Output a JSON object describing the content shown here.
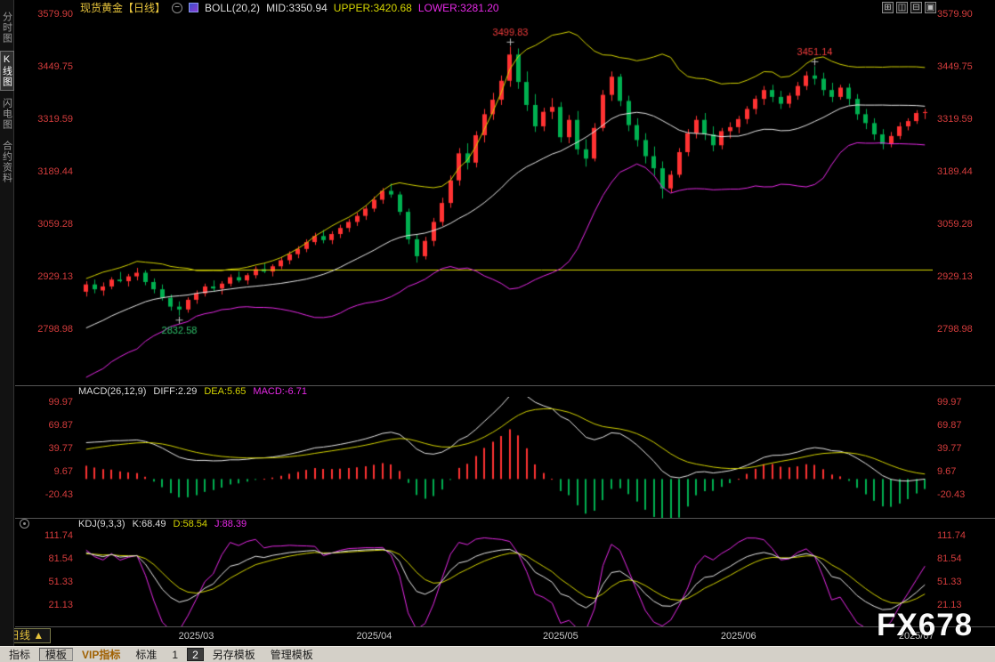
{
  "window": {
    "watermark": "FX678"
  },
  "colors": {
    "background": "#000000",
    "axis_text": "#d43c3c",
    "xaxis_text": "#c8c8c8",
    "title_yellow": "#e6c33c",
    "candle_up": "#ff3232",
    "candle_down": "#00b050",
    "boll_upper": "#d4d400",
    "boll_mid": "#e8e8e8",
    "boll_lower": "#e629e6",
    "alert_line": "#d8d800",
    "macd_diff": "#e8e8e8",
    "macd_dea": "#d4d400",
    "kdj_k": "#e8e8e8",
    "kdj_d": "#d4d400",
    "kdj_j": "#e629e6",
    "annotation_high": "#f03c3c",
    "annotation_low": "#2fc06a"
  },
  "sidebar": {
    "items": [
      {
        "label": "分时图",
        "selected": false
      },
      {
        "label": "K线图",
        "selected": true
      },
      {
        "label": "闪电图",
        "selected": false
      },
      {
        "label": "合约资料",
        "selected": false
      }
    ]
  },
  "header": {
    "title": "现货黄金【日线】",
    "boll_label": "BOLL(20,2)",
    "boll_mid": "MID:3350.94",
    "boll_upper": "UPPER:3420.68",
    "boll_lower": "LOWER:3281.20"
  },
  "macd_header": {
    "label": "MACD(26,12,9)",
    "diff": "DIFF:2.29",
    "dea": "DEA:5.65",
    "macd": "MACD:-6.71"
  },
  "kdj_header": {
    "label": "KDJ(9,3,3)",
    "k": "K:68.49",
    "d": "D:58.54",
    "j": "J:88.39"
  },
  "axes": {
    "main": [
      "3579.90",
      "3449.75",
      "3319.59",
      "3189.44",
      "3059.28",
      "2929.13",
      "2798.98"
    ],
    "macd": [
      "99.97",
      "69.87",
      "39.77",
      "9.67",
      "-20.43"
    ],
    "kdj": [
      "111.74",
      "81.54",
      "51.33",
      "21.13"
    ]
  },
  "timeframe_tab": {
    "label": "日线 ▲"
  },
  "toolbar": {
    "buttons": [
      {
        "label": "指标",
        "name": "indicators-button",
        "state": "normal"
      },
      {
        "label": "模板",
        "name": "templates-button",
        "state": "selected"
      },
      {
        "label": "VIP指标",
        "name": "vip-indicators-button",
        "state": "vip"
      },
      {
        "label": "标准",
        "name": "standard-button",
        "state": "normal"
      },
      {
        "label": "1",
        "name": "layout-1-button",
        "state": "normal"
      },
      {
        "label": "2",
        "name": "layout-2-button",
        "state": "dark"
      },
      {
        "label": "另存模板",
        "name": "save-template-as-button",
        "state": "normal"
      },
      {
        "label": "管理模板",
        "name": "manage-template-button",
        "state": "normal"
      }
    ]
  },
  "chart_data": {
    "type": "candlestick",
    "title": "现货黄金 日线",
    "y_ticks": [
      3579.9,
      3449.75,
      3319.59,
      3189.44,
      3059.28,
      2929.13,
      2798.98
    ],
    "indicators": {
      "boll": {
        "period": 20,
        "mult": 2,
        "mid": 3350.94,
        "upper": 3420.68,
        "lower": 3281.2
      },
      "macd": {
        "params": [
          26,
          12,
          9
        ],
        "diff": 2.29,
        "dea": 5.65,
        "macd": -6.71,
        "y_ticks": [
          99.97,
          69.87,
          39.77,
          9.67,
          -20.43
        ]
      },
      "kdj": {
        "params": [
          9,
          3,
          3
        ],
        "k": 68.49,
        "d": 58.54,
        "j": 88.39,
        "y_ticks": [
          111.74,
          81.54,
          51.33,
          21.13
        ]
      }
    },
    "x_labels": [
      {
        "index": 13,
        "label": "2025/03"
      },
      {
        "index": 34,
        "label": "2025/04"
      },
      {
        "index": 56,
        "label": "2025/05"
      },
      {
        "index": 77,
        "label": "2025/06"
      },
      {
        "index": 98,
        "label": "2025/07"
      }
    ],
    "annotations": [
      {
        "index": 50,
        "text": "3499.83",
        "type": "high"
      },
      {
        "index": 86,
        "text": "3451.14",
        "type": "high"
      },
      {
        "index": 11,
        "text": "2832.58",
        "type": "low"
      }
    ],
    "horizontal_line": {
      "price": 2947.0,
      "start_index": 8
    },
    "lead_in_closes": [
      2690,
      2705,
      2720,
      2700,
      2735,
      2750,
      2770,
      2745,
      2780,
      2800,
      2790,
      2815,
      2830,
      2810,
      2845,
      2860,
      2850,
      2875,
      2865,
      2885
    ],
    "candles": [
      [
        2892,
        2918,
        2880,
        2910
      ],
      [
        2910,
        2922,
        2888,
        2898
      ],
      [
        2895,
        2915,
        2882,
        2905
      ],
      [
        2905,
        2928,
        2898,
        2922
      ],
      [
        2922,
        2941,
        2915,
        2918
      ],
      [
        2918,
        2936,
        2905,
        2930
      ],
      [
        2930,
        2951,
        2920,
        2939
      ],
      [
        2939,
        2945,
        2908,
        2916
      ],
      [
        2916,
        2925,
        2888,
        2898
      ],
      [
        2898,
        2910,
        2870,
        2877
      ],
      [
        2877,
        2885,
        2845,
        2855
      ],
      [
        2855,
        2868,
        2832.6,
        2848
      ],
      [
        2848,
        2878,
        2840,
        2872
      ],
      [
        2872,
        2895,
        2862,
        2888
      ],
      [
        2888,
        2912,
        2880,
        2905
      ],
      [
        2905,
        2920,
        2892,
        2900
      ],
      [
        2900,
        2918,
        2885,
        2912
      ],
      [
        2912,
        2935,
        2905,
        2928
      ],
      [
        2928,
        2942,
        2915,
        2920
      ],
      [
        2920,
        2938,
        2910,
        2933
      ],
      [
        2933,
        2955,
        2925,
        2948
      ],
      [
        2948,
        2962,
        2938,
        2942
      ],
      [
        2942,
        2960,
        2930,
        2955
      ],
      [
        2955,
        2978,
        2948,
        2970
      ],
      [
        2970,
        2992,
        2960,
        2985
      ],
      [
        2985,
        3005,
        2975,
        2998
      ],
      [
        2998,
        3022,
        2990,
        3015
      ],
      [
        3015,
        3038,
        3008,
        3030
      ],
      [
        3030,
        3045,
        3012,
        3020
      ],
      [
        3020,
        3042,
        3010,
        3035
      ],
      [
        3035,
        3058,
        3025,
        3050
      ],
      [
        3050,
        3072,
        3040,
        3065
      ],
      [
        3065,
        3088,
        3055,
        3080
      ],
      [
        3080,
        3105,
        3070,
        3098
      ],
      [
        3098,
        3128,
        3090,
        3120
      ],
      [
        3120,
        3149,
        3110,
        3142
      ],
      [
        3142,
        3160,
        3125,
        3133
      ],
      [
        3133,
        3140,
        3082,
        3090
      ],
      [
        3090,
        3098,
        3010,
        3022
      ],
      [
        3022,
        3035,
        2964,
        2980
      ],
      [
        2980,
        3028,
        2972,
        3018
      ],
      [
        3018,
        3075,
        3005,
        3065
      ],
      [
        3065,
        3125,
        3055,
        3112
      ],
      [
        3112,
        3180,
        3100,
        3168
      ],
      [
        3168,
        3248,
        3155,
        3235
      ],
      [
        3235,
        3260,
        3195,
        3212
      ],
      [
        3212,
        3290,
        3200,
        3280
      ],
      [
        3280,
        3345,
        3262,
        3332
      ],
      [
        3332,
        3385,
        3318,
        3368
      ],
      [
        3368,
        3428,
        3355,
        3415
      ],
      [
        3415,
        3499.8,
        3400,
        3480
      ],
      [
        3480,
        3495,
        3395,
        3412
      ],
      [
        3412,
        3438,
        3340,
        3355
      ],
      [
        3355,
        3382,
        3288,
        3302
      ],
      [
        3302,
        3348,
        3290,
        3338
      ],
      [
        3338,
        3372,
        3320,
        3350
      ],
      [
        3350,
        3362,
        3262,
        3275
      ],
      [
        3275,
        3330,
        3260,
        3318
      ],
      [
        3318,
        3340,
        3232,
        3245
      ],
      [
        3245,
        3270,
        3202,
        3222
      ],
      [
        3222,
        3310,
        3215,
        3298
      ],
      [
        3298,
        3392,
        3290,
        3380
      ],
      [
        3380,
        3438,
        3365,
        3425
      ],
      [
        3425,
        3432,
        3352,
        3365
      ],
      [
        3365,
        3378,
        3290,
        3305
      ],
      [
        3305,
        3322,
        3252,
        3268
      ],
      [
        3268,
        3285,
        3210,
        3228
      ],
      [
        3228,
        3252,
        3180,
        3198
      ],
      [
        3198,
        3215,
        3123,
        3148
      ],
      [
        3148,
        3192,
        3138,
        3182
      ],
      [
        3182,
        3248,
        3175,
        3238
      ],
      [
        3238,
        3295,
        3228,
        3285
      ],
      [
        3285,
        3328,
        3272,
        3318
      ],
      [
        3318,
        3335,
        3268,
        3282
      ],
      [
        3282,
        3302,
        3240,
        3255
      ],
      [
        3255,
        3298,
        3245,
        3290
      ],
      [
        3290,
        3312,
        3272,
        3300
      ],
      [
        3300,
        3328,
        3285,
        3320
      ],
      [
        3320,
        3352,
        3308,
        3345
      ],
      [
        3345,
        3378,
        3332,
        3370
      ],
      [
        3370,
        3402,
        3355,
        3392
      ],
      [
        3392,
        3405,
        3362,
        3375
      ],
      [
        3375,
        3390,
        3345,
        3358
      ],
      [
        3358,
        3385,
        3348,
        3378
      ],
      [
        3378,
        3412,
        3368,
        3402
      ],
      [
        3402,
        3438,
        3392,
        3428
      ],
      [
        3428,
        3451.1,
        3405,
        3420
      ],
      [
        3420,
        3435,
        3378,
        3392
      ],
      [
        3392,
        3410,
        3362,
        3375
      ],
      [
        3375,
        3405,
        3368,
        3398
      ],
      [
        3398,
        3408,
        3355,
        3370
      ],
      [
        3370,
        3382,
        3318,
        3332
      ],
      [
        3332,
        3345,
        3295,
        3310
      ],
      [
        3310,
        3322,
        3268,
        3282
      ],
      [
        3282,
        3295,
        3245,
        3258
      ],
      [
        3258,
        3288,
        3250,
        3278
      ],
      [
        3278,
        3312,
        3270,
        3302
      ],
      [
        3302,
        3322,
        3292,
        3315
      ],
      [
        3315,
        3342,
        3308,
        3335
      ],
      [
        3335,
        3345,
        3320,
        3337.5
      ]
    ]
  }
}
